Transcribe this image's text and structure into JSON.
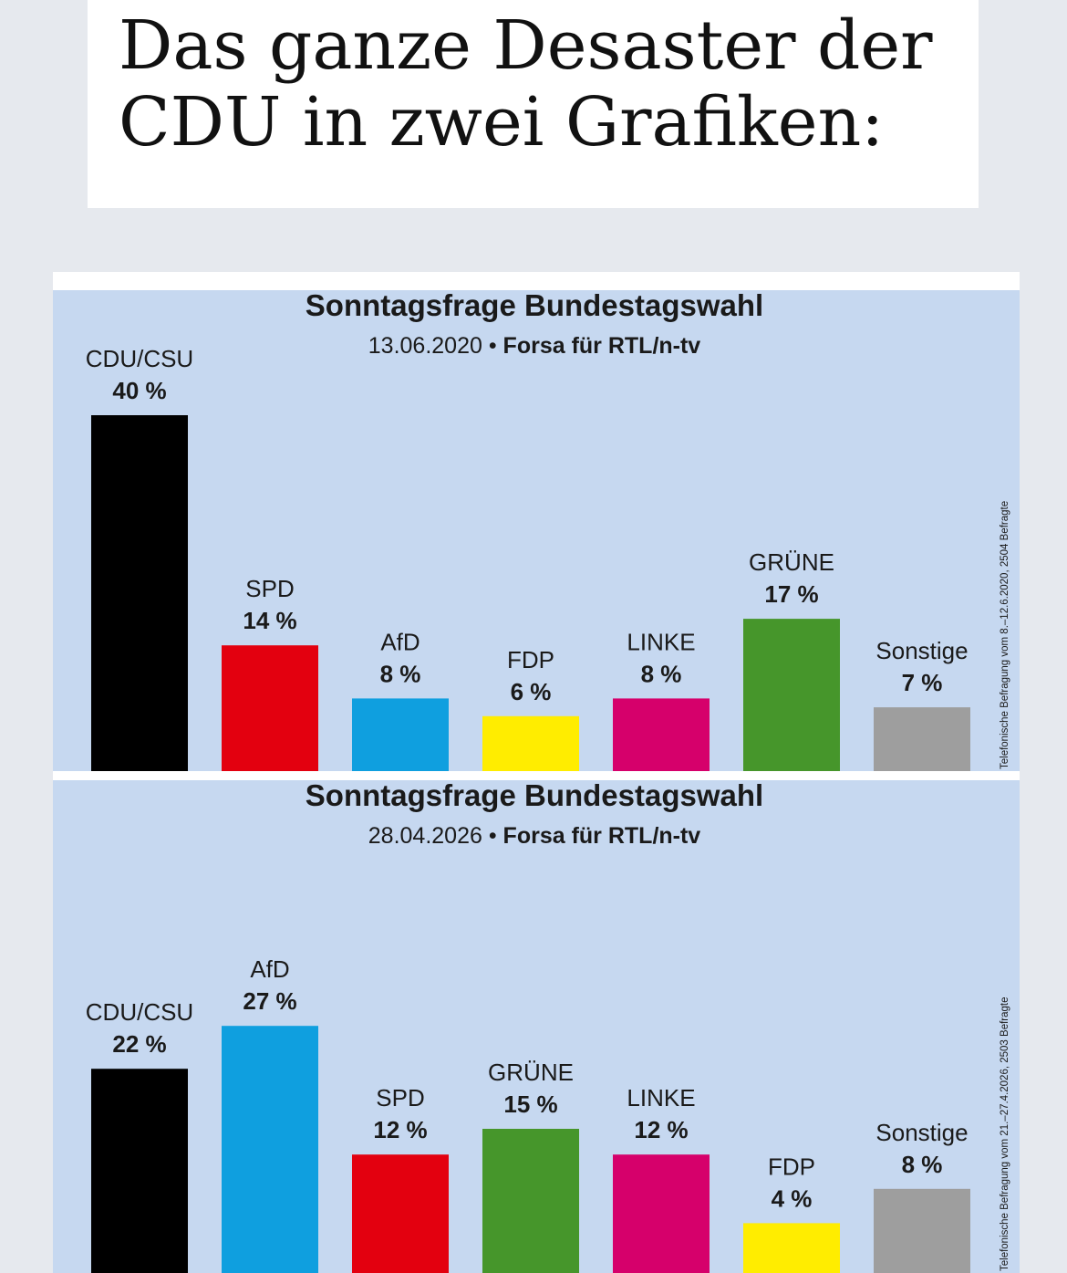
{
  "headline": "Das ganze Desaster der\nCDU in zwei Grafiken:",
  "colors": {
    "panel_bg": "#c6d8f0",
    "CDU/CSU": "#000000",
    "SPD": "#e3000f",
    "AfD": "#0f9fdf",
    "FDP": "#ffed00",
    "LINKE": "#d6006b",
    "GRÜNE": "#46962b",
    "Sonstige": "#9e9e9e"
  },
  "chart_data": [
    {
      "type": "bar",
      "title": "Sonntagsfrage Bundestagswahl",
      "subtitle_date": "13.06.2020",
      "subtitle_source": "Forsa für RTL/n-tv",
      "side_note": "Telefonische Befragung vom 8.–12.6.2020, 2504 Befragte",
      "categories": [
        "CDU/CSU",
        "SPD",
        "AfD",
        "FDP",
        "LINKE",
        "GRÜNE",
        "Sonstige"
      ],
      "values": [
        40,
        14,
        8,
        6,
        8,
        17,
        7
      ],
      "value_labels": [
        "40 %",
        "14 %",
        "8 %",
        "6 %",
        "8 %",
        "17 %",
        "7 %"
      ],
      "ylim": [
        0,
        40
      ]
    },
    {
      "type": "bar",
      "title": "Sonntagsfrage Bundestagswahl",
      "subtitle_date": "28.04.2026",
      "subtitle_source": "Forsa für RTL/n-tv",
      "side_note": "Telefonische Befragung vom 21.–27.4.2026, 2503 Befragte",
      "categories": [
        "CDU/CSU",
        "AfD",
        "SPD",
        "GRÜNE",
        "LINKE",
        "FDP",
        "Sonstige"
      ],
      "values": [
        22,
        27,
        12,
        15,
        12,
        4,
        8
      ],
      "value_labels": [
        "22 %",
        "27 %",
        "12 %",
        "15 %",
        "12 %",
        "4 %",
        "8 %"
      ],
      "ylim": [
        0,
        27
      ]
    }
  ]
}
